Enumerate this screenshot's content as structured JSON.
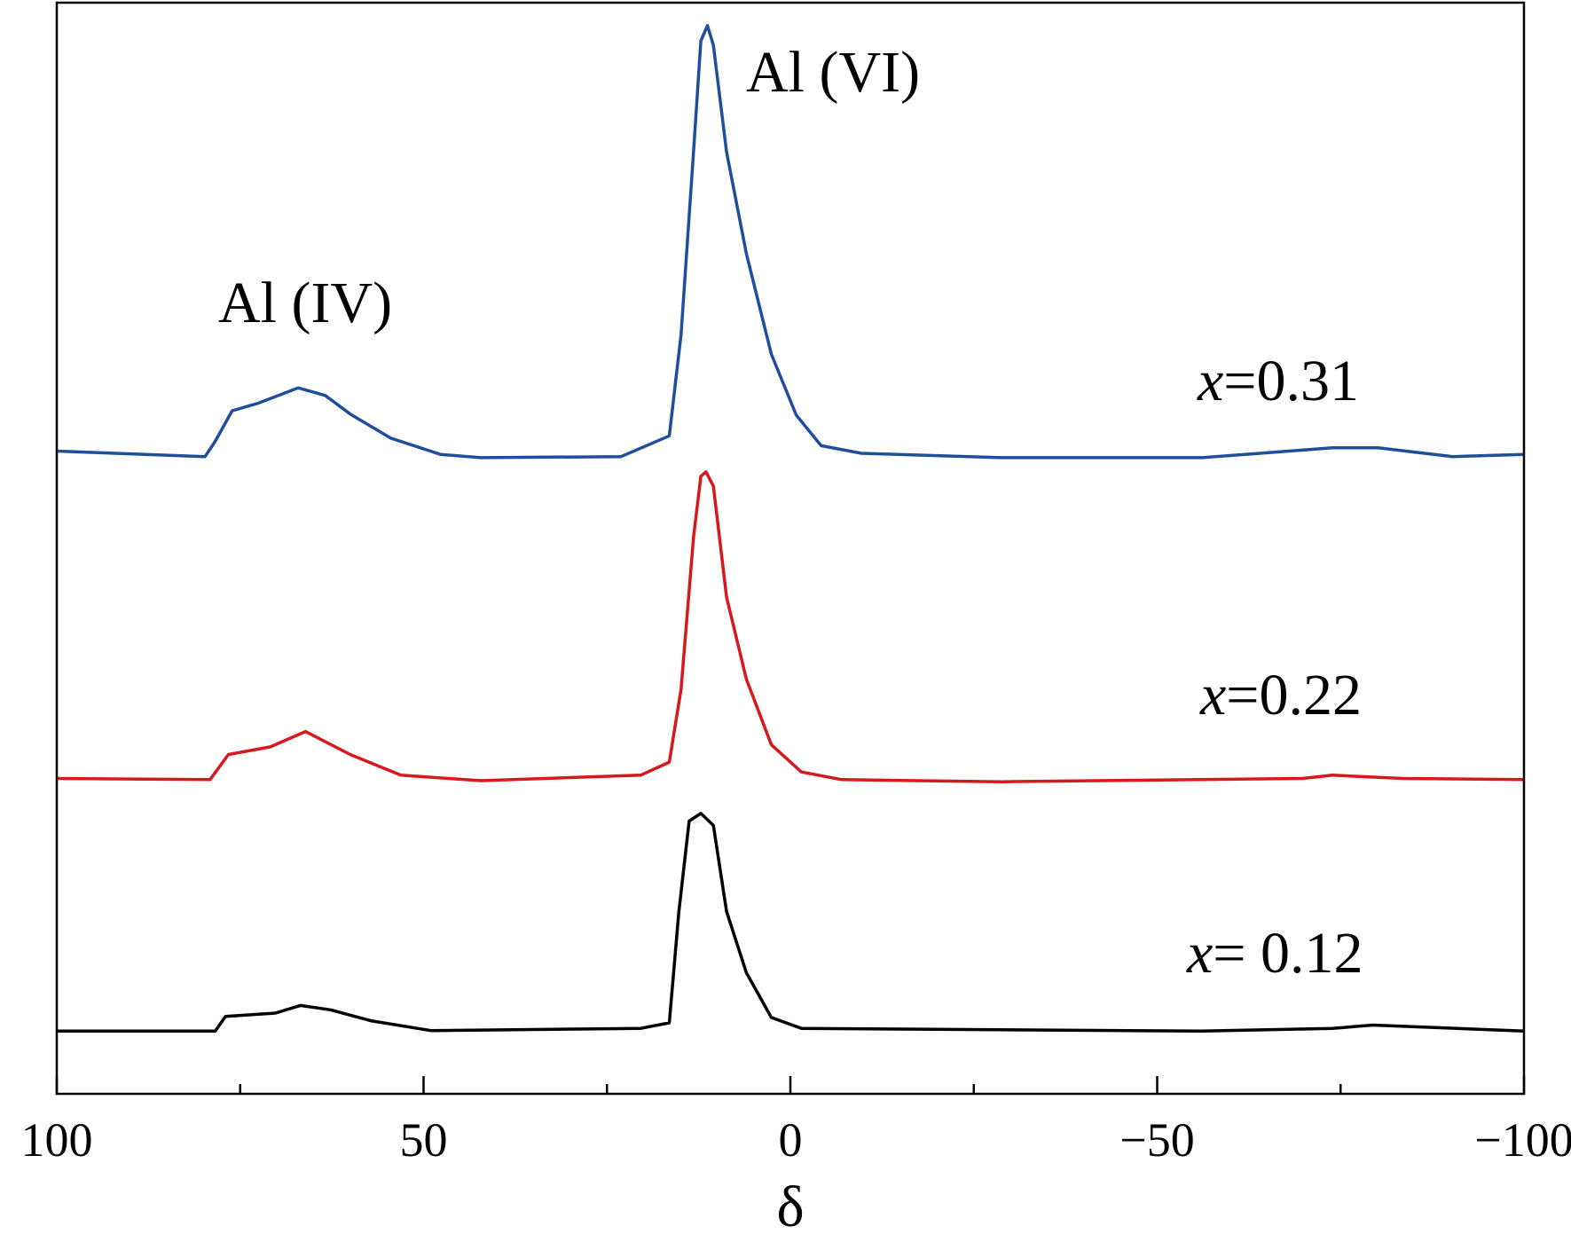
{
  "chart_data": {
    "type": "line",
    "x_label": "δ",
    "xlim": [
      100,
      -100
    ],
    "xticks": [
      100,
      50,
      0,
      {
        "value": -50,
        "label": "−50"
      },
      {
        "value": -100,
        "label": "−100"
      }
    ],
    "xminorticks": [
      75,
      25,
      -25,
      -75
    ],
    "ylim": [
      0,
      100
    ],
    "annotations": [
      "Al (VI)",
      "Al (IV)"
    ],
    "series": [
      {
        "name": "x=0.31",
        "color": "#1f4e9c",
        "x": [
          100,
          79.8,
          78.4,
          76.1,
          72.5,
          67.1,
          63.4,
          60.0,
          54.5,
          47.7,
          42.2,
          23.1,
          16.5,
          14.9,
          13.2,
          12.2,
          11.3,
          10.5,
          8.7,
          6.0,
          2.6,
          -0.8,
          -4.2,
          -9.7,
          -28.8,
          -56.1,
          -73.9,
          -80.1,
          -90.3,
          -100
        ],
        "values": [
          58.9,
          58.4,
          59.8,
          62.6,
          63.3,
          64.7,
          64.0,
          62.3,
          60.1,
          58.6,
          58.3,
          58.4,
          60.3,
          69.6,
          86.3,
          96.5,
          97.9,
          96.1,
          86.3,
          77.0,
          67.8,
          62.2,
          59.4,
          58.7,
          58.3,
          58.3,
          59.2,
          59.2,
          58.4,
          58.6
        ]
      },
      {
        "name": "x=0.22",
        "color": "#d7191c",
        "x": [
          100,
          79.1,
          76.6,
          70.9,
          66.1,
          60.0,
          53.1,
          42.2,
          20.4,
          16.5,
          14.9,
          13.2,
          12.2,
          11.5,
          10.5,
          8.7,
          6.0,
          2.6,
          -1.5,
          -7.0,
          -28.8,
          -69.8,
          -73.9,
          -83.5,
          -100
        ],
        "values": [
          28.9,
          28.8,
          31.1,
          31.8,
          33.2,
          31.1,
          29.2,
          28.7,
          29.2,
          30.4,
          37.1,
          51.0,
          56.6,
          57.0,
          55.7,
          45.5,
          38.0,
          32.0,
          29.5,
          28.8,
          28.6,
          28.9,
          29.2,
          28.9,
          28.8
        ]
      },
      {
        "name": "x= 0.12",
        "color": "#000000",
        "x": [
          100,
          78.4,
          77.0,
          70.2,
          66.8,
          62.7,
          57.2,
          49.0,
          20.4,
          16.5,
          15.2,
          13.8,
          12.2,
          10.5,
          8.7,
          6.0,
          2.6,
          -1.5,
          -56.1,
          -73.9,
          -79.4,
          -100
        ],
        "values": [
          5.75,
          5.75,
          7.1,
          7.4,
          8.1,
          7.7,
          6.7,
          5.8,
          6.0,
          6.5,
          16.7,
          25.0,
          25.7,
          24.6,
          16.7,
          11.1,
          7.0,
          6.0,
          5.75,
          6.0,
          6.3,
          5.75
        ]
      }
    ]
  }
}
